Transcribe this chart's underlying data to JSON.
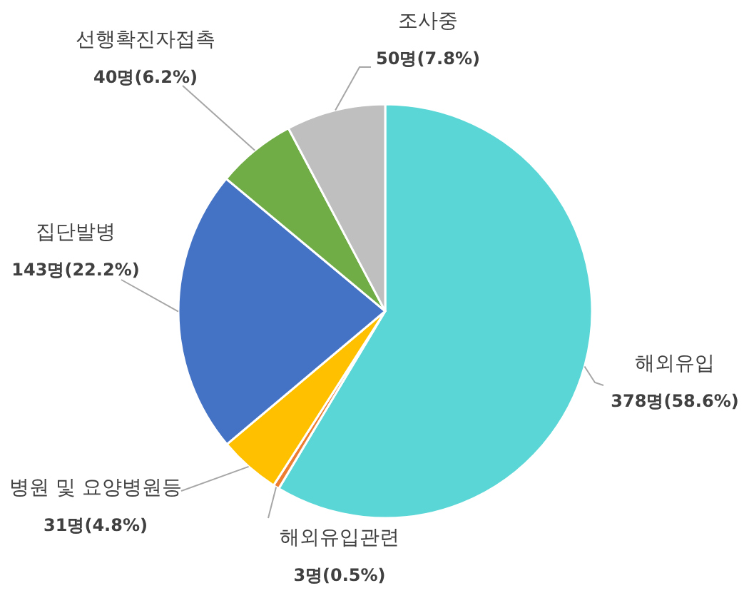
{
  "chart_data": {
    "type": "pie",
    "categories": [
      "해외유입",
      "해외유입관련",
      "병원 및 요양병원등",
      "집단발병",
      "선행확진자접촉",
      "조사중"
    ],
    "values": [
      378,
      3,
      31,
      143,
      40,
      50
    ],
    "colors": [
      "#5ad6d6",
      "#ed7d31",
      "#ffc000",
      "#4472c4",
      "#70ad47",
      "#bfbfbf"
    ],
    "value_labels": [
      "378명(58.6%)",
      "3명(0.5%)",
      "31명(4.8%)",
      "143명(22.2%)",
      "40명(6.2%)",
      "50명(7.8%)"
    ]
  }
}
